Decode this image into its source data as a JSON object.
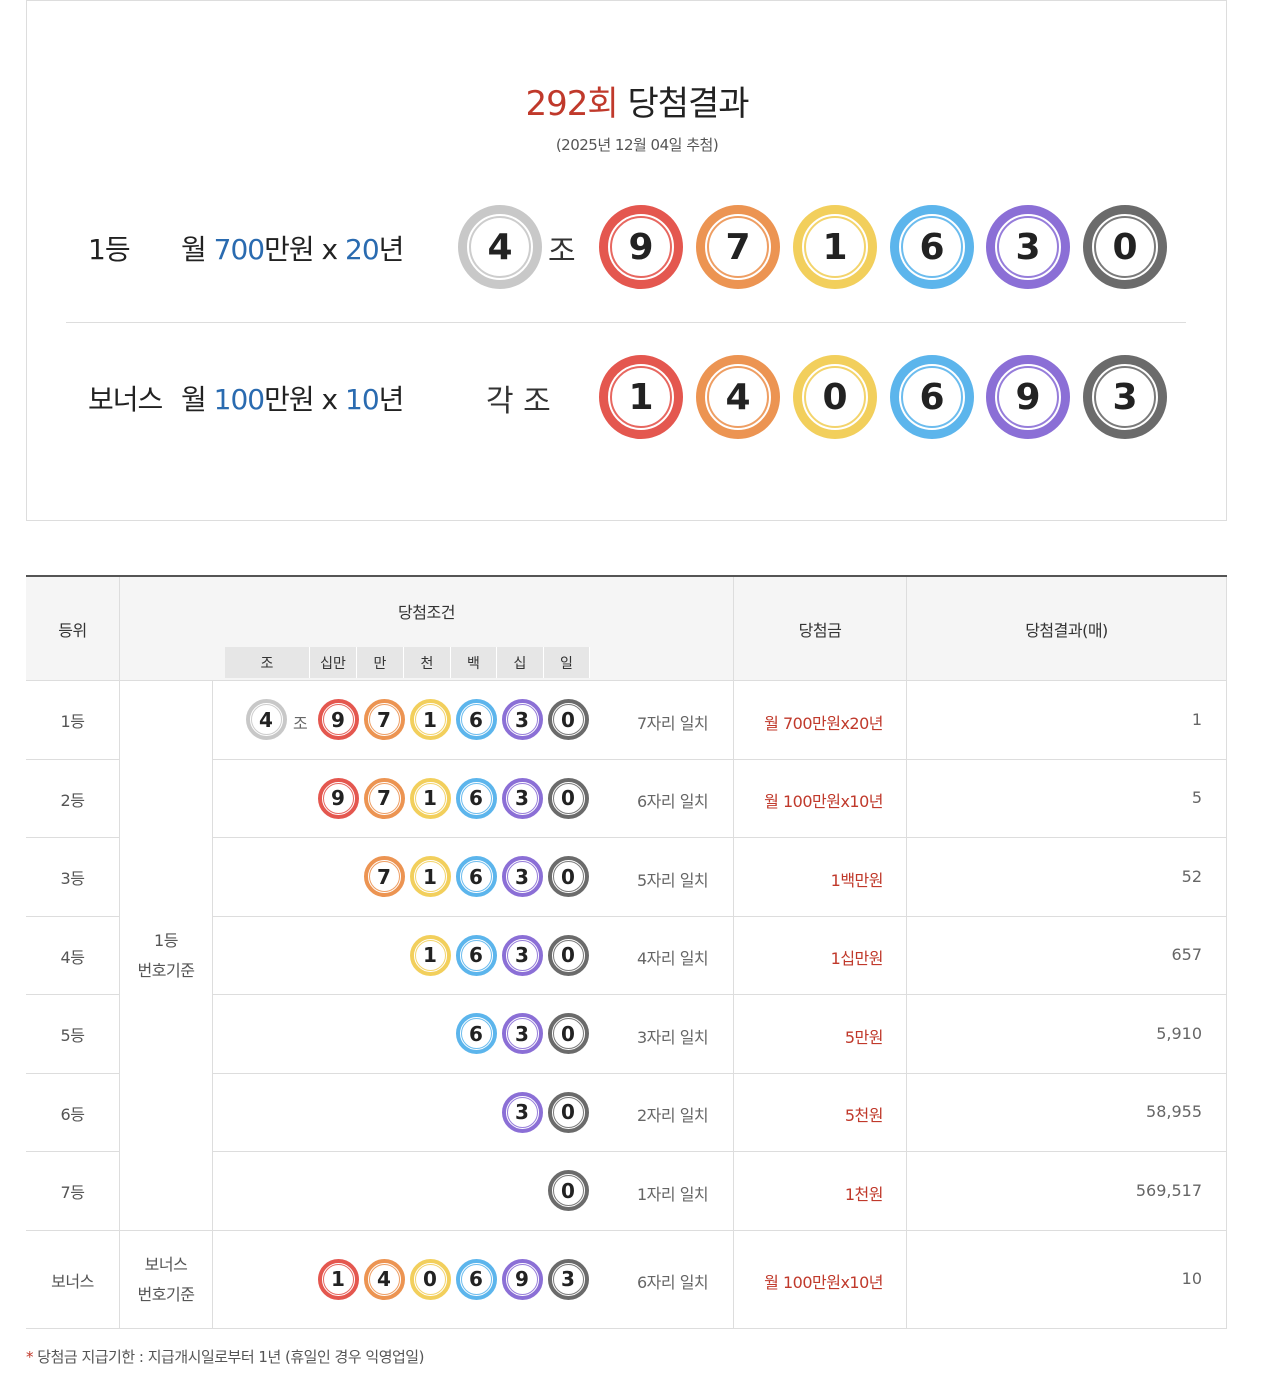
{
  "header": {
    "round": "292회",
    "title": "당첨결과",
    "draw_date": "(2025년 12월 04일 추첨)"
  },
  "first": {
    "rank": "1등",
    "prefix": "월",
    "amount": "700",
    "unit": "만원 x",
    "years": "20",
    "year_unit": "년",
    "jo_number": "4",
    "jo_label": "조",
    "numbers": [
      "9",
      "7",
      "1",
      "6",
      "3",
      "0"
    ]
  },
  "bonus": {
    "rank": "보너스",
    "prefix": "월",
    "amount": "100",
    "unit": "만원 x",
    "years": "10",
    "year_unit": "년",
    "each_label": "각 조",
    "numbers": [
      "1",
      "4",
      "0",
      "6",
      "9",
      "3"
    ]
  },
  "colors": {
    "jo": "#c8c8c8",
    "positions": [
      "#e4574f",
      "#ec9452",
      "#f2cf5c",
      "#5cb5ec",
      "#8b6fd6",
      "#6b6b6b"
    ],
    "accent": "#c0392b",
    "blue": "#2a6bb0"
  },
  "table": {
    "headers": {
      "rank": "등위",
      "condition": "당첨조건",
      "prize": "당첨금",
      "result": "당첨결과(매)"
    },
    "digit_headers": [
      "조",
      "십만",
      "만",
      "천",
      "백",
      "십",
      "일"
    ],
    "basis_first": "1등\n번호기준",
    "basis_first_lines": [
      "1등",
      "번호기준"
    ],
    "basis_bonus_lines": [
      "보너스",
      "번호기준"
    ],
    "rows": [
      {
        "rank": "1등",
        "jo": "4",
        "jo_label": "조",
        "numbers": [
          "9",
          "7",
          "1",
          "6",
          "3",
          "0"
        ],
        "match": "7자리 일치",
        "prize": "월 700만원x20년",
        "count": "1"
      },
      {
        "rank": "2등",
        "numbers": [
          "9",
          "7",
          "1",
          "6",
          "3",
          "0"
        ],
        "match": "6자리 일치",
        "prize": "월 100만원x10년",
        "count": "5"
      },
      {
        "rank": "3등",
        "numbers": [
          "7",
          "1",
          "6",
          "3",
          "0"
        ],
        "match": "5자리 일치",
        "prize": "1백만원",
        "count": "52"
      },
      {
        "rank": "4등",
        "numbers": [
          "1",
          "6",
          "3",
          "0"
        ],
        "match": "4자리 일치",
        "prize": "1십만원",
        "count": "657"
      },
      {
        "rank": "5등",
        "numbers": [
          "6",
          "3",
          "0"
        ],
        "match": "3자리 일치",
        "prize": "5만원",
        "count": "5,910"
      },
      {
        "rank": "6등",
        "numbers": [
          "3",
          "0"
        ],
        "match": "2자리 일치",
        "prize": "5천원",
        "count": "58,955"
      },
      {
        "rank": "7등",
        "numbers": [
          "0"
        ],
        "match": "1자리 일치",
        "prize": "1천원",
        "count": "569,517"
      },
      {
        "rank": "보너스",
        "numbers": [
          "1",
          "4",
          "0",
          "6",
          "9",
          "3"
        ],
        "match": "6자리 일치",
        "prize": "월 100만원x10년",
        "count": "10"
      }
    ]
  },
  "note": {
    "star": "*",
    "text": "당첨금 지급기한 : 지급개시일로부터 1년 (휴일인 경우 익영업일)"
  }
}
